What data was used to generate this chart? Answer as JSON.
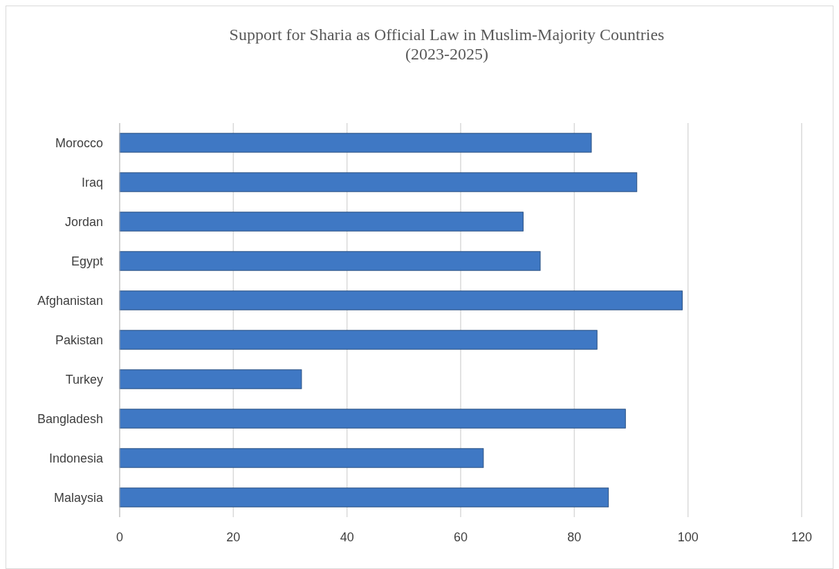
{
  "chart_data": {
    "type": "bar",
    "orientation": "horizontal",
    "title": "Support for Sharia as Official Law in Muslim-Majority Countries (2023-2025)",
    "categories": [
      "Morocco",
      "Iraq",
      "Jordan",
      "Egypt",
      "Afghanistan",
      "Pakistan",
      "Turkey",
      "Bangladesh",
      "Indonesia",
      "Malaysia"
    ],
    "values": [
      83,
      91,
      71,
      74,
      99,
      84,
      32,
      89,
      64,
      86
    ],
    "color": "#3f78c4",
    "xlim": [
      0,
      120
    ],
    "xticks": [
      0,
      20,
      40,
      60,
      80,
      100,
      120
    ],
    "grid": "x"
  }
}
